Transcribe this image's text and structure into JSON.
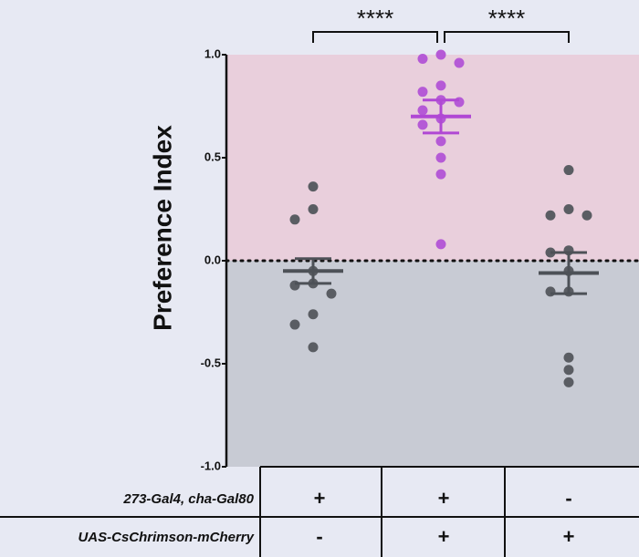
{
  "chart_data": {
    "type": "strip",
    "ylabel": "Preference Index",
    "ylim": [
      -1,
      1
    ],
    "yticks": [
      {
        "value": -1,
        "label": "-1.0"
      },
      -0.5,
      {
        "value": 0,
        "label": "0.0"
      },
      0.5,
      {
        "value": 1,
        "label": "1.0"
      }
    ],
    "groups": [
      {
        "color": "#5a5d63",
        "values": [
          0.36,
          0.25,
          0.2,
          -0.05,
          -0.11,
          -0.12,
          -0.16,
          -0.26,
          -0.31,
          -0.42
        ],
        "mean": -0.05,
        "sem": 0.06
      },
      {
        "color": "#b55ad6",
        "values": [
          1.0,
          0.98,
          0.96,
          0.85,
          0.82,
          0.78,
          0.77,
          0.73,
          0.69,
          0.66,
          0.58,
          0.5,
          0.42,
          0.08
        ],
        "mean": 0.7,
        "sem": 0.08
      },
      {
        "color": "#5a5d63",
        "values": [
          0.44,
          0.25,
          0.22,
          0.22,
          0.05,
          0.04,
          -0.05,
          -0.15,
          -0.15,
          -0.47,
          -0.53,
          -0.59
        ],
        "mean": -0.06,
        "sem": 0.1
      }
    ],
    "annotations": [
      "****",
      "****"
    ]
  },
  "table": {
    "rows": [
      {
        "label": "273-Gal4, cha-Gal80",
        "cells": [
          "+",
          "+",
          "-"
        ]
      },
      {
        "label": "UAS-CsChrimson-mCherry",
        "cells": [
          "-",
          "+",
          "+"
        ]
      }
    ]
  }
}
